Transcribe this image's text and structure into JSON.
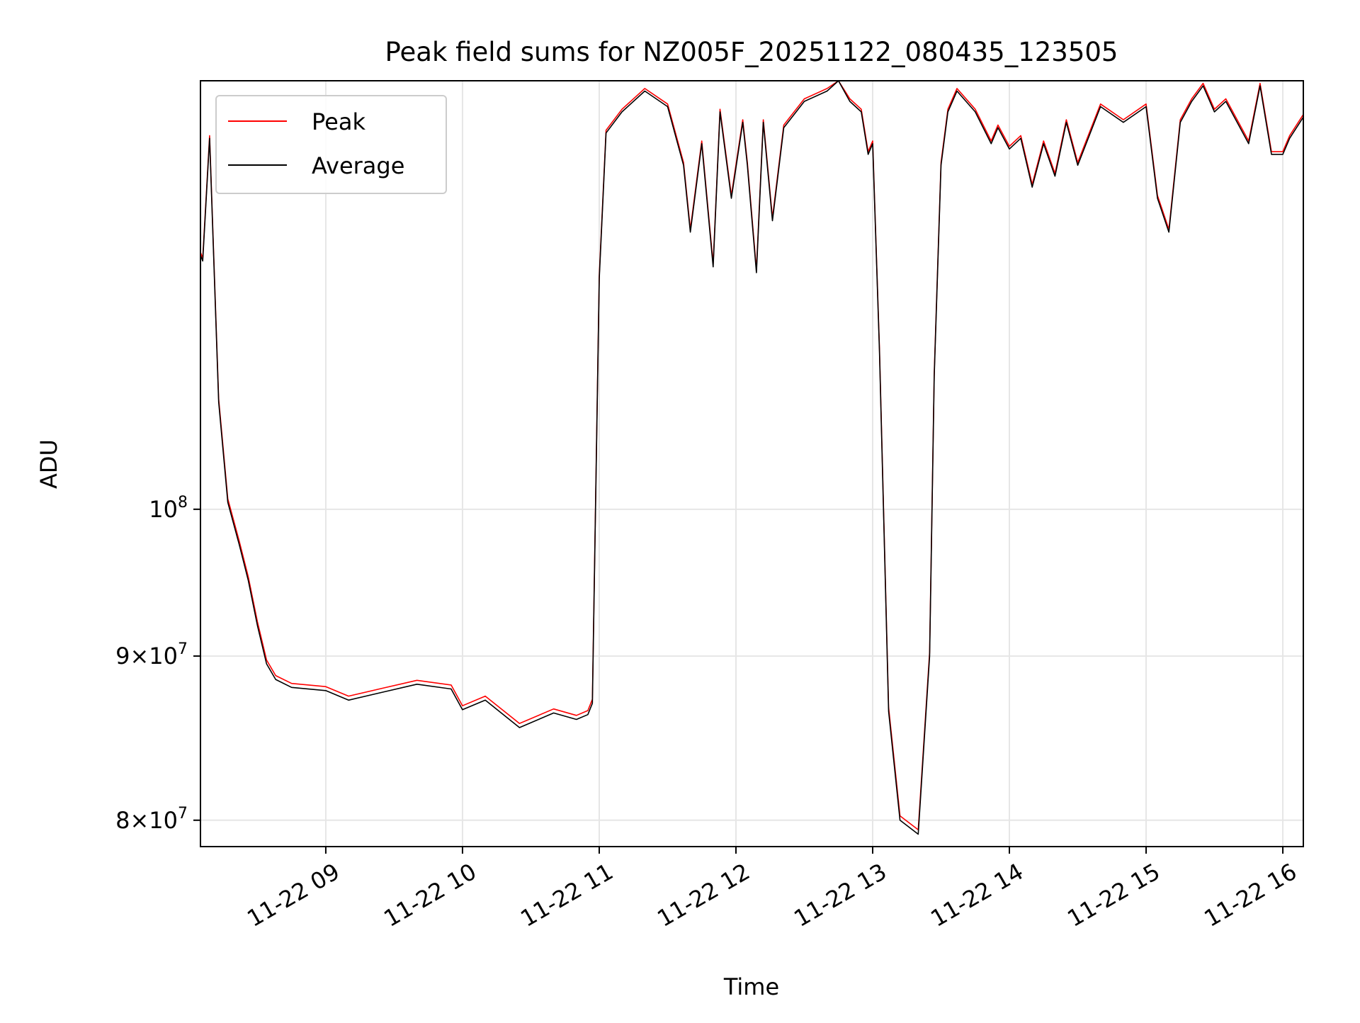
{
  "chart_data": {
    "type": "line",
    "title": "Peak field sums for NZ005F_20251122_080435_123505",
    "xlabel": "Time",
    "ylabel": "ADU",
    "yscale": "log",
    "ylim": [
      78500000,
      136000000
    ],
    "xlim": [
      "2025-11-22 08:05",
      "2025-11-22 16:09"
    ],
    "grid": true,
    "legend_position": "upper left",
    "x_ticks": [
      "11-22 09",
      "11-22 10",
      "11-22 11",
      "11-22 12",
      "11-22 13",
      "11-22 14",
      "11-22 15",
      "11-22 16"
    ],
    "y_ticks": [
      {
        "value": 80000000,
        "label_mantissa": "8",
        "label_base": "10",
        "label_exp": "7"
      },
      {
        "value": 90000000,
        "label_mantissa": "9",
        "label_base": "10",
        "label_exp": "7"
      },
      {
        "value": 100000000,
        "label_mantissa": "",
        "label_base": "10",
        "label_exp": "8"
      }
    ],
    "series": [
      {
        "name": "Peak",
        "color": "#ff0000",
        "offset": 250000
      },
      {
        "name": "Average",
        "color": "#000000",
        "offset": 0
      }
    ],
    "x": [
      "2025-11-22 08:05",
      "2025-11-22 08:06",
      "2025-11-22 08:09",
      "2025-11-22 08:13",
      "2025-11-22 08:17",
      "2025-11-22 08:22",
      "2025-11-22 08:26",
      "2025-11-22 08:30",
      "2025-11-22 08:34",
      "2025-11-22 08:38",
      "2025-11-22 08:45",
      "2025-11-22 09:00",
      "2025-11-22 09:10",
      "2025-11-22 09:25",
      "2025-11-22 09:40",
      "2025-11-22 09:55",
      "2025-11-22 10:00",
      "2025-11-22 10:10",
      "2025-11-22 10:25",
      "2025-11-22 10:40",
      "2025-11-22 10:50",
      "2025-11-22 10:55",
      "2025-11-22 10:57",
      "2025-11-22 11:00",
      "2025-11-22 11:03",
      "2025-11-22 11:10",
      "2025-11-22 11:20",
      "2025-11-22 11:30",
      "2025-11-22 11:37",
      "2025-11-22 11:40",
      "2025-11-22 11:45",
      "2025-11-22 11:50",
      "2025-11-22 11:53",
      "2025-11-22 11:58",
      "2025-11-22 12:03",
      "2025-11-22 12:05",
      "2025-11-22 12:09",
      "2025-11-22 12:12",
      "2025-11-22 12:16",
      "2025-11-22 12:21",
      "2025-11-22 12:30",
      "2025-11-22 12:40",
      "2025-11-22 12:45",
      "2025-11-22 12:50",
      "2025-11-22 12:55",
      "2025-11-22 12:58",
      "2025-11-22 13:00",
      "2025-11-22 13:03",
      "2025-11-22 13:07",
      "2025-11-22 13:12",
      "2025-11-22 13:20",
      "2025-11-22 13:25",
      "2025-11-22 13:27",
      "2025-11-22 13:30",
      "2025-11-22 13:33",
      "2025-11-22 13:37",
      "2025-11-22 13:45",
      "2025-11-22 13:52",
      "2025-11-22 13:55",
      "2025-11-22 14:00",
      "2025-11-22 14:05",
      "2025-11-22 14:10",
      "2025-11-22 14:15",
      "2025-11-22 14:20",
      "2025-11-22 14:25",
      "2025-11-22 14:30",
      "2025-11-22 14:40",
      "2025-11-22 14:50",
      "2025-11-22 15:00",
      "2025-11-22 15:05",
      "2025-11-22 15:10",
      "2025-11-22 15:15",
      "2025-11-22 15:20",
      "2025-11-22 15:25",
      "2025-11-22 15:30",
      "2025-11-22 15:35",
      "2025-11-22 15:45",
      "2025-11-22 15:50",
      "2025-11-22 15:55",
      "2025-11-22 16:00",
      "2025-11-22 16:03",
      "2025-11-22 16:09"
    ],
    "y": [
      120000000,
      119500000,
      130500000,
      108000000,
      100500000,
      97500000,
      95000000,
      92000000,
      89500000,
      88500000,
      88000000,
      87800000,
      87200000,
      87700000,
      88200000,
      87900000,
      86600000,
      87200000,
      85500000,
      86400000,
      86000000,
      86300000,
      87000000,
      118000000,
      131000000,
      133000000,
      135000000,
      133500000,
      128000000,
      122000000,
      130000000,
      119000000,
      133000000,
      125000000,
      132000000,
      128000000,
      118500000,
      132000000,
      123000000,
      131500000,
      134000000,
      135000000,
      137000000,
      134000000,
      133000000,
      129000000,
      130000000,
      112000000,
      86500000,
      80000000,
      79200000,
      90000000,
      110000000,
      128000000,
      133000000,
      135000000,
      133000000,
      130000000,
      131500000,
      129500000,
      130500000,
      126000000,
      130000000,
      127000000,
      132000000,
      128000000,
      133500000,
      132000000,
      133500000,
      125000000,
      122000000,
      132000000,
      134000000,
      135500000,
      133000000,
      134000000,
      130000000,
      135500000,
      129000000,
      129000000,
      130500000,
      132500000
    ]
  }
}
